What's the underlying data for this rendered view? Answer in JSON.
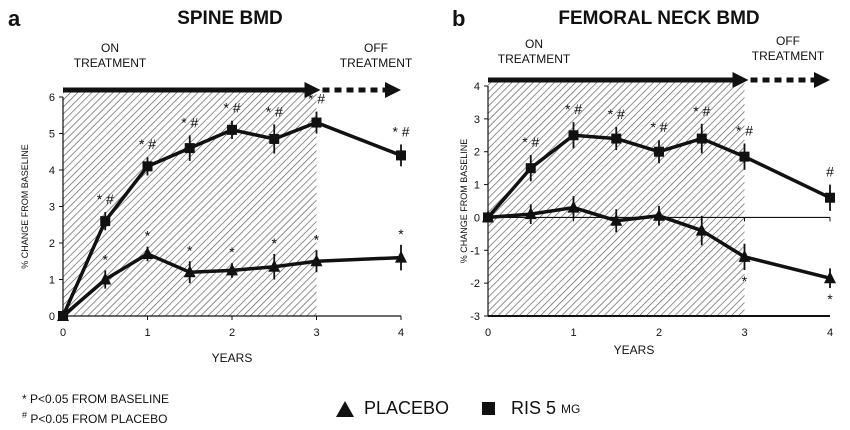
{
  "panels": [
    {
      "letter": "a",
      "title": "SPINE BMD",
      "on_label": [
        "ON",
        "TREATMENT"
      ],
      "off_label": [
        "OFF",
        "TREATMENT"
      ]
    },
    {
      "letter": "b",
      "title": "FEMORAL NECK BMD",
      "on_label": [
        "ON",
        "TREATMENT"
      ],
      "off_label": [
        "OFF",
        "TREATMENT"
      ]
    }
  ],
  "footnotes": {
    "star_mark": "*",
    "star_text": " P<0.05 FROM BASELINE",
    "hash_mark": "#",
    "hash_text": " P<0.05 FROM PLACEBO"
  },
  "legend": {
    "placebo": "PLACEBO",
    "ris": "RIS 5",
    "ris_unit": "MG"
  },
  "colors": {
    "ink": "#111111",
    "hatch": "#555555",
    "background": "#ffffff"
  },
  "chart_data": [
    {
      "type": "line",
      "title": "SPINE BMD",
      "xlabel": "YEARS",
      "ylabel": "% CHANGE FROM BASELINE",
      "xlim": [
        0,
        4
      ],
      "ylim": [
        0,
        6
      ],
      "xticks": [
        0,
        1,
        2,
        3,
        4
      ],
      "yticks": [
        0,
        1,
        2,
        3,
        4,
        5,
        6
      ],
      "treatment_end_year": 3,
      "grid": false,
      "series": [
        {
          "name": "RIS 5 MG",
          "marker": "square",
          "x": [
            0,
            0.5,
            1,
            1.5,
            2,
            2.5,
            3,
            4
          ],
          "y": [
            0,
            2.6,
            4.1,
            4.6,
            5.1,
            4.85,
            5.3,
            4.4
          ],
          "err": [
            0,
            0.25,
            0.25,
            0.35,
            0.25,
            0.4,
            0.3,
            0.3
          ],
          "annotations": [
            "",
            "* #",
            "* #",
            "* #",
            "* #",
            "* #",
            "* #",
            "* #"
          ]
        },
        {
          "name": "PLACEBO",
          "marker": "triangle",
          "x": [
            0,
            0.5,
            1,
            1.5,
            2,
            2.5,
            3,
            4
          ],
          "y": [
            0,
            1.0,
            1.7,
            1.2,
            1.25,
            1.35,
            1.5,
            1.6
          ],
          "err": [
            0,
            0.25,
            0.2,
            0.3,
            0.2,
            0.35,
            0.3,
            0.35
          ],
          "annotations": [
            "",
            "*",
            "*",
            "*",
            "*",
            "*",
            "*",
            "*"
          ]
        }
      ]
    },
    {
      "type": "line",
      "title": "FEMORAL NECK BMD",
      "xlabel": "YEARS",
      "ylabel": "% CHANGE FROM BASELINE",
      "xlim": [
        0,
        4
      ],
      "ylim": [
        -3,
        4
      ],
      "xticks": [
        0,
        1,
        2,
        3,
        4
      ],
      "yticks": [
        -3,
        -2,
        -1,
        0,
        1,
        2,
        3,
        4
      ],
      "treatment_end_year": 3,
      "grid": false,
      "series": [
        {
          "name": "RIS 5 MG",
          "marker": "square",
          "x": [
            0,
            0.5,
            1,
            1.5,
            2,
            2.5,
            3,
            4
          ],
          "y": [
            0,
            1.5,
            2.5,
            2.4,
            2.0,
            2.4,
            1.85,
            0.6
          ],
          "err": [
            0,
            0.4,
            0.4,
            0.35,
            0.35,
            0.45,
            0.4,
            0.4
          ],
          "annotations": [
            "",
            "* #",
            "* #",
            "* #",
            "* #",
            "* #",
            "* #",
            "#"
          ]
        },
        {
          "name": "PLACEBO",
          "marker": "triangle",
          "x": [
            0,
            0.5,
            1,
            1.5,
            2,
            2.5,
            3,
            4
          ],
          "y": [
            0,
            0.1,
            0.3,
            -0.1,
            0.05,
            -0.4,
            -1.2,
            -1.85
          ],
          "err": [
            0,
            0.3,
            0.35,
            0.35,
            0.3,
            0.45,
            0.4,
            0.3
          ],
          "annotations": [
            "",
            "",
            "",
            "",
            "",
            "",
            "*",
            "*"
          ]
        }
      ]
    }
  ]
}
